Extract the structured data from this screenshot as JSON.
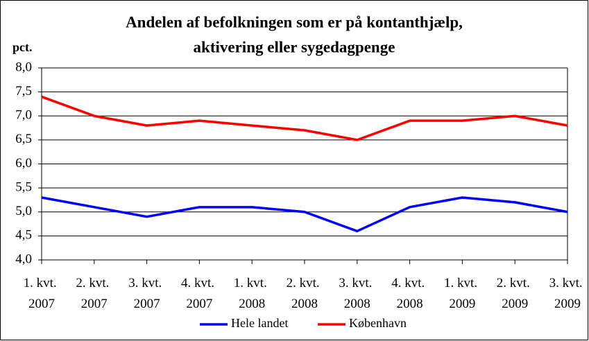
{
  "chart_data": {
    "type": "line",
    "title": [
      "Andelen af befolkningen som er på kontanthjælp,",
      "aktivering eller sygedagpenge"
    ],
    "y_label": "pct.",
    "categories": [
      "1. kvt. 2007",
      "2. kvt. 2007",
      "3. kvt. 2007",
      "4. kvt. 2007",
      "1. kvt. 2008",
      "2. kvt. 2008",
      "3. kvt. 2008",
      "4. kvt. 2008",
      "1. kvt. 2009",
      "2. kvt. 2009",
      "3. kvt. 2009"
    ],
    "series": [
      {
        "name": "Hele landet",
        "color": "#0000ff",
        "values": [
          5.3,
          5.1,
          4.9,
          5.1,
          5.1,
          5.0,
          4.6,
          5.1,
          5.3,
          5.2,
          5.0
        ]
      },
      {
        "name": "København",
        "color": "#ff0000",
        "values": [
          7.4,
          7.0,
          6.8,
          6.9,
          6.8,
          6.7,
          6.5,
          6.9,
          6.9,
          7.0,
          6.8
        ]
      }
    ],
    "ylim": [
      4,
      8
    ],
    "yticks": [
      {
        "value": 4,
        "label": "4,0"
      },
      {
        "value": 4.5,
        "label": "4,5"
      },
      {
        "value": 5,
        "label": "5,0"
      },
      {
        "value": 5.5,
        "label": "5,5"
      },
      {
        "value": 6,
        "label": "6,0"
      },
      {
        "value": 6.5,
        "label": "6,5"
      },
      {
        "value": 7,
        "label": "7,0"
      },
      {
        "value": 7.5,
        "label": "7,5"
      },
      {
        "value": 8,
        "label": "8,0"
      }
    ],
    "grid": true,
    "legend": "bottom"
  }
}
